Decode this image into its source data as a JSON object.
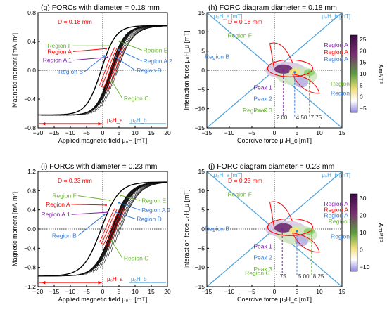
{
  "colors": {
    "region_a": "#ff0000",
    "region_a1": "#7a1fa2",
    "region_blue": "#3a7bd5",
    "region_green": "#6bb33a",
    "peak1": "#7a1fa2",
    "peak2": "#3a7bd5",
    "peak3": "#6bb33a",
    "axis_cyan": "#4aa3df",
    "d_label": "#ff0000"
  },
  "chart_data": [
    {
      "id": "g",
      "type": "line",
      "title": "(g) FORCs with diameter = 0.18 mm",
      "d_label": "D = 0.18 mm",
      "xlabel": "Applied magnetic field μ₀H [mT]",
      "ylabel": "Magnetic moment [mA·m²]",
      "xlim": [
        -20,
        20
      ],
      "ylim": [
        -0.8,
        0.8
      ],
      "xticks": [
        "−20",
        "−15",
        "−10",
        "−5",
        "0",
        "5",
        "10",
        "15",
        "20"
      ],
      "yticks": [
        "0.8",
        "0.4",
        "0.0",
        "−0.4",
        "−0.8"
      ],
      "ytick_values": [
        0.8,
        0.4,
        0.0,
        -0.4,
        -0.8
      ],
      "ms": 0.62,
      "hc_min": 0.5,
      "hc_max": 4.5,
      "width": 4.5,
      "curves": 26,
      "hb_bar": "μ₀H_b",
      "ha_bar": "μ₀H_a",
      "regions": [
        {
          "label": "Region F",
          "color": "green",
          "tx": -13.5,
          "ty": 0.31,
          "px": 2.2,
          "py": 0.34
        },
        {
          "label": "Region A",
          "color": "red",
          "tx": -13.5,
          "ty": 0.23,
          "px": 1.0,
          "py": 0.3
        },
        {
          "label": "Region A 1",
          "color": "purple",
          "tx": -13.5,
          "ty": 0.11,
          "px": 1.5,
          "py": 0.18
        },
        {
          "label": "Region B",
          "color": "blue",
          "tx": -10,
          "ty": -0.05,
          "px": 0.5,
          "py": 0.2
        },
        {
          "label": "Region E",
          "color": "green",
          "tx": 12.5,
          "ty": 0.25,
          "px": 5.2,
          "py": 0.4
        },
        {
          "label": "Region A 2",
          "color": "blue",
          "tx": 12.5,
          "ty": 0.1,
          "px": 5.0,
          "py": 0.28
        },
        {
          "label": "Region D",
          "color": "blue",
          "tx": 10.5,
          "ty": -0.03,
          "px": 4.0,
          "py": 0.18
        },
        {
          "label": "Region C",
          "color": "green",
          "tx": 6.5,
          "ty": -0.42,
          "px": 2.8,
          "py": -0.15
        }
      ]
    },
    {
      "id": "h",
      "type": "heatmap",
      "title": "(h) FORC diagram diameter = 0.18 mm",
      "d_label": "D = 0.18 mm",
      "xlabel": "Coercive force μ₀H_c [mT]",
      "ylabel": "Interaction force μ₀H_u [mT]",
      "xlim": [
        -15,
        15
      ],
      "ylim": [
        -15,
        15
      ],
      "xticks": [
        "−15",
        "−10",
        "−5",
        "0",
        "5",
        "10",
        "15"
      ],
      "yticks": [
        "15",
        "10",
        "5",
        "0",
        "−5",
        "−10",
        "−15"
      ],
      "colorbar_ticks": [
        "25",
        "20",
        "15",
        "10",
        "5",
        "0",
        "−5"
      ],
      "colorbar_unit": "Am²/T²",
      "axis_labels_diag": [
        "μ₀H_a [mT]",
        "μ₀H_b [mT]"
      ],
      "peaks": [
        {
          "label": "Peak 1",
          "color": "purple",
          "hc": 2.0,
          "hu": 0
        },
        {
          "label": "Peak 2",
          "color": "blue",
          "hc": 4.5,
          "hu": -0.5
        },
        {
          "label": "Peak 3",
          "color": "green",
          "hc": 7.75,
          "hu": -0.5
        }
      ],
      "peak_values": [
        "2.00",
        "4.50",
        "7.75"
      ],
      "regions": [
        {
          "label": "Region F",
          "color": "green",
          "tx": -5,
          "ty": 8.5
        },
        {
          "label": "Region A 1",
          "color": "purple",
          "tx": 11,
          "ty": 6
        },
        {
          "label": "Region A",
          "color": "red",
          "tx": 11,
          "ty": 4.2
        },
        {
          "label": "Region A 2",
          "color": "blue",
          "tx": 11,
          "ty": 2.4
        },
        {
          "label": "Region B",
          "color": "blue",
          "tx": -10,
          "ty": 3
        },
        {
          "label": "Region E",
          "color": "green",
          "tx": 12.5,
          "ty": -4
        },
        {
          "label": "Region D",
          "color": "blue",
          "tx": 12.5,
          "ty": -6.5
        },
        {
          "label": "Region C",
          "color": "green",
          "tx": -1.5,
          "ty": -11
        }
      ]
    },
    {
      "id": "i",
      "type": "line",
      "title": "(i) FORCs with diameter = 0.23 mm",
      "d_label": "D = 0.23 mm",
      "xlabel": "Applied magnetic field μ₀H [mT]",
      "ylabel": "Magnetic moment [mA·m²]",
      "xlim": [
        -20,
        20
      ],
      "ylim": [
        -1.2,
        1.2
      ],
      "xticks": [
        "−20",
        "−15",
        "−10",
        "−5",
        "0",
        "5",
        "10",
        "15",
        "20"
      ],
      "yticks": [
        "1.2",
        "0.8",
        "0.4",
        "0.0",
        "−0.4",
        "−0.8",
        "−1.2"
      ],
      "ytick_values": [
        1.2,
        0.8,
        0.4,
        0.0,
        -0.4,
        -0.8,
        -1.2
      ],
      "ms": 0.98,
      "hc_min": 0.5,
      "hc_max": 5.5,
      "width": 5.5,
      "curves": 26,
      "hb_bar": "μ₀H_b",
      "ha_bar": "μ₀H_a",
      "regions": [
        {
          "label": "Region F",
          "color": "green",
          "tx": -12,
          "ty": 0.65,
          "px": 2.2,
          "py": 0.6
        },
        {
          "label": "Region A",
          "color": "red",
          "tx": -14,
          "ty": 0.47,
          "px": 1.0,
          "py": 0.5
        },
        {
          "label": "Region A 1",
          "color": "purple",
          "tx": -14,
          "ty": 0.26,
          "px": 1.5,
          "py": 0.35
        },
        {
          "label": "Region B",
          "color": "blue",
          "tx": -12,
          "ty": -0.18,
          "px": 0.5,
          "py": 0.3
        },
        {
          "label": "Region E",
          "color": "green",
          "tx": 12,
          "ty": 0.55,
          "px": 5.5,
          "py": 0.7
        },
        {
          "label": "Region A 2",
          "color": "blue",
          "tx": 12,
          "ty": 0.35,
          "px": 5.0,
          "py": 0.55
        },
        {
          "label": "Region D",
          "color": "blue",
          "tx": 10.5,
          "ty": 0.17,
          "px": 4.0,
          "py": 0.35
        },
        {
          "label": "Region C",
          "color": "green",
          "tx": 6.5,
          "ty": -0.65,
          "px": 2.8,
          "py": -0.25
        }
      ]
    },
    {
      "id": "j",
      "type": "heatmap",
      "title": "(j) FORC diagram diameter = 0.23 mm",
      "d_label": "D = 0.23 mm",
      "xlabel": "Coercive force μ₀H_c [mT]",
      "ylabel": "Interaction force μ₀H_u [mT]",
      "xlim": [
        -15,
        15
      ],
      "ylim": [
        -15,
        15
      ],
      "xticks": [
        "−15",
        "−10",
        "−5",
        "0",
        "5",
        "10",
        "15"
      ],
      "yticks": [
        "15",
        "10",
        "5",
        "0",
        "−5",
        "−10",
        "−15"
      ],
      "colorbar_ticks": [
        "30",
        "20",
        "10",
        "0",
        "−10"
      ],
      "colorbar_unit": "Am²/T²",
      "axis_labels_diag": [
        "μ₀H_a [mT]",
        "μ₀H_b [mT]"
      ],
      "peaks": [
        {
          "label": "Peak 1",
          "color": "purple",
          "hc": 1.75,
          "hu": 0
        },
        {
          "label": "Peak 2",
          "color": "blue",
          "hc": 5.0,
          "hu": -0.5
        },
        {
          "label": "Peak 3",
          "color": "green",
          "hc": 8.25,
          "hu": -0.5
        }
      ],
      "peak_values": [
        "1.75",
        "5.00",
        "8.25"
      ],
      "regions": [
        {
          "label": "Region F",
          "color": "green",
          "tx": -5,
          "ty": 8.5
        },
        {
          "label": "Region A 1",
          "color": "purple",
          "tx": 11,
          "ty": 6
        },
        {
          "label": "Region A",
          "color": "red",
          "tx": 11,
          "ty": 4.5
        },
        {
          "label": "Region A 2",
          "color": "blue",
          "tx": 11,
          "ty": 3
        },
        {
          "label": "Region E",
          "color": "green",
          "tx": 12,
          "ty": 1.5
        },
        {
          "label": "Region B",
          "color": "blue",
          "tx": -10,
          "ty": -0.5
        },
        {
          "label": "Region D",
          "color": "blue",
          "tx": 12.5,
          "ty": -2.5
        },
        {
          "label": "Region C",
          "color": "green",
          "tx": -1,
          "ty": -12
        }
      ]
    }
  ]
}
